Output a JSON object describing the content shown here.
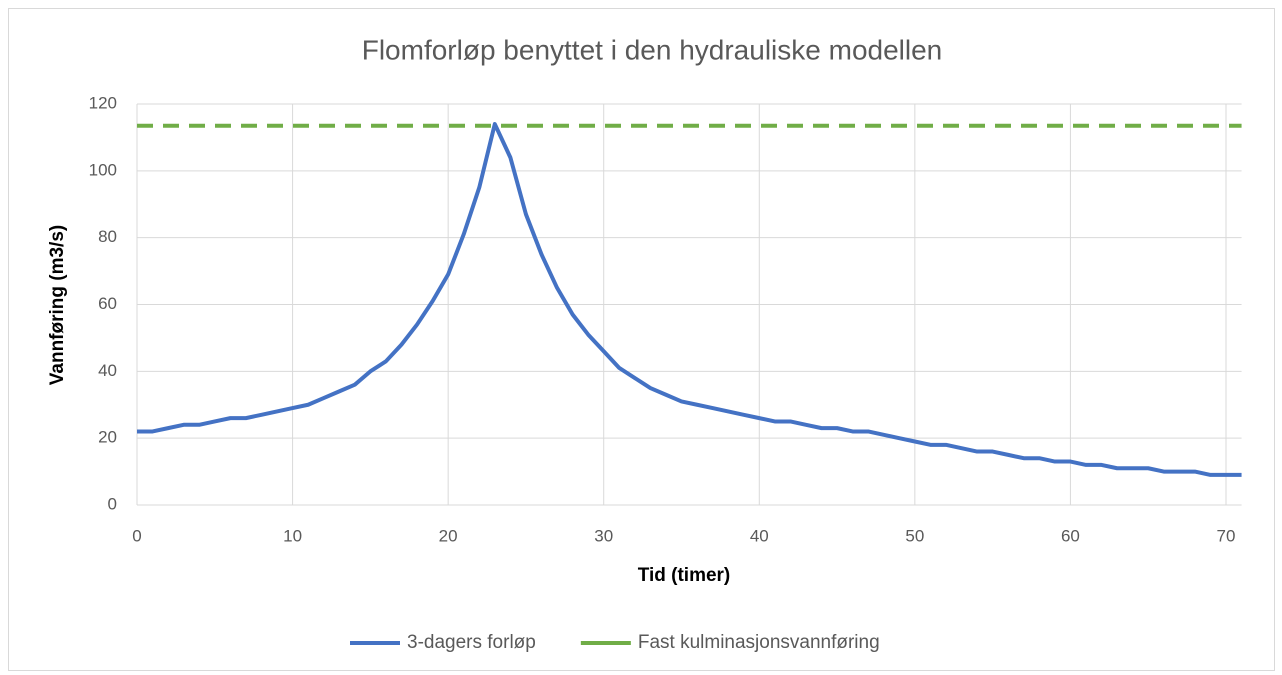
{
  "chart_data": {
    "type": "line",
    "title": "Flomforløp benyttet i den hydrauliske modellen",
    "xlabel": "Tid (timer)",
    "ylabel": "Vannføring (m3/s)",
    "x": [
      0,
      1,
      2,
      3,
      4,
      5,
      6,
      7,
      8,
      9,
      10,
      11,
      12,
      13,
      14,
      15,
      16,
      17,
      18,
      19,
      20,
      21,
      22,
      23,
      24,
      25,
      26,
      27,
      28,
      29,
      30,
      31,
      32,
      33,
      34,
      35,
      36,
      37,
      38,
      39,
      40,
      41,
      42,
      43,
      44,
      45,
      46,
      47,
      48,
      49,
      50,
      51,
      52,
      53,
      54,
      55,
      56,
      57,
      58,
      59,
      60,
      61,
      62,
      63,
      64,
      65,
      66,
      67,
      68,
      69,
      70,
      71
    ],
    "series": [
      {
        "name": "3-dagers forløp",
        "color": "#4472c4",
        "values": [
          22,
          22,
          23,
          24,
          24,
          25,
          26,
          26,
          27,
          28,
          29,
          30,
          32,
          34,
          36,
          40,
          43,
          48,
          54,
          61,
          69,
          81,
          95,
          114,
          104,
          87,
          75,
          65,
          57,
          51,
          46,
          41,
          38,
          35,
          33,
          31,
          30,
          29,
          28,
          27,
          26,
          25,
          25,
          24,
          23,
          23,
          22,
          22,
          21,
          20,
          19,
          18,
          18,
          17,
          16,
          16,
          15,
          14,
          14,
          13,
          13,
          12,
          12,
          11,
          11,
          11,
          10,
          10,
          10,
          9,
          9,
          9
        ]
      },
      {
        "name": "Fast kulminasjonsvannføring",
        "color": "#70ad47",
        "dashed": true,
        "x": [
          0,
          71
        ],
        "values": [
          113.5,
          113.5
        ]
      }
    ],
    "xlim": [
      0,
      71
    ],
    "xticks": [
      0,
      10,
      20,
      30,
      40,
      50,
      60,
      70
    ],
    "ylim": [
      0,
      120
    ],
    "yticks": [
      0,
      20,
      40,
      60,
      80,
      100,
      120
    ],
    "grid": true,
    "legend": "bottom"
  }
}
